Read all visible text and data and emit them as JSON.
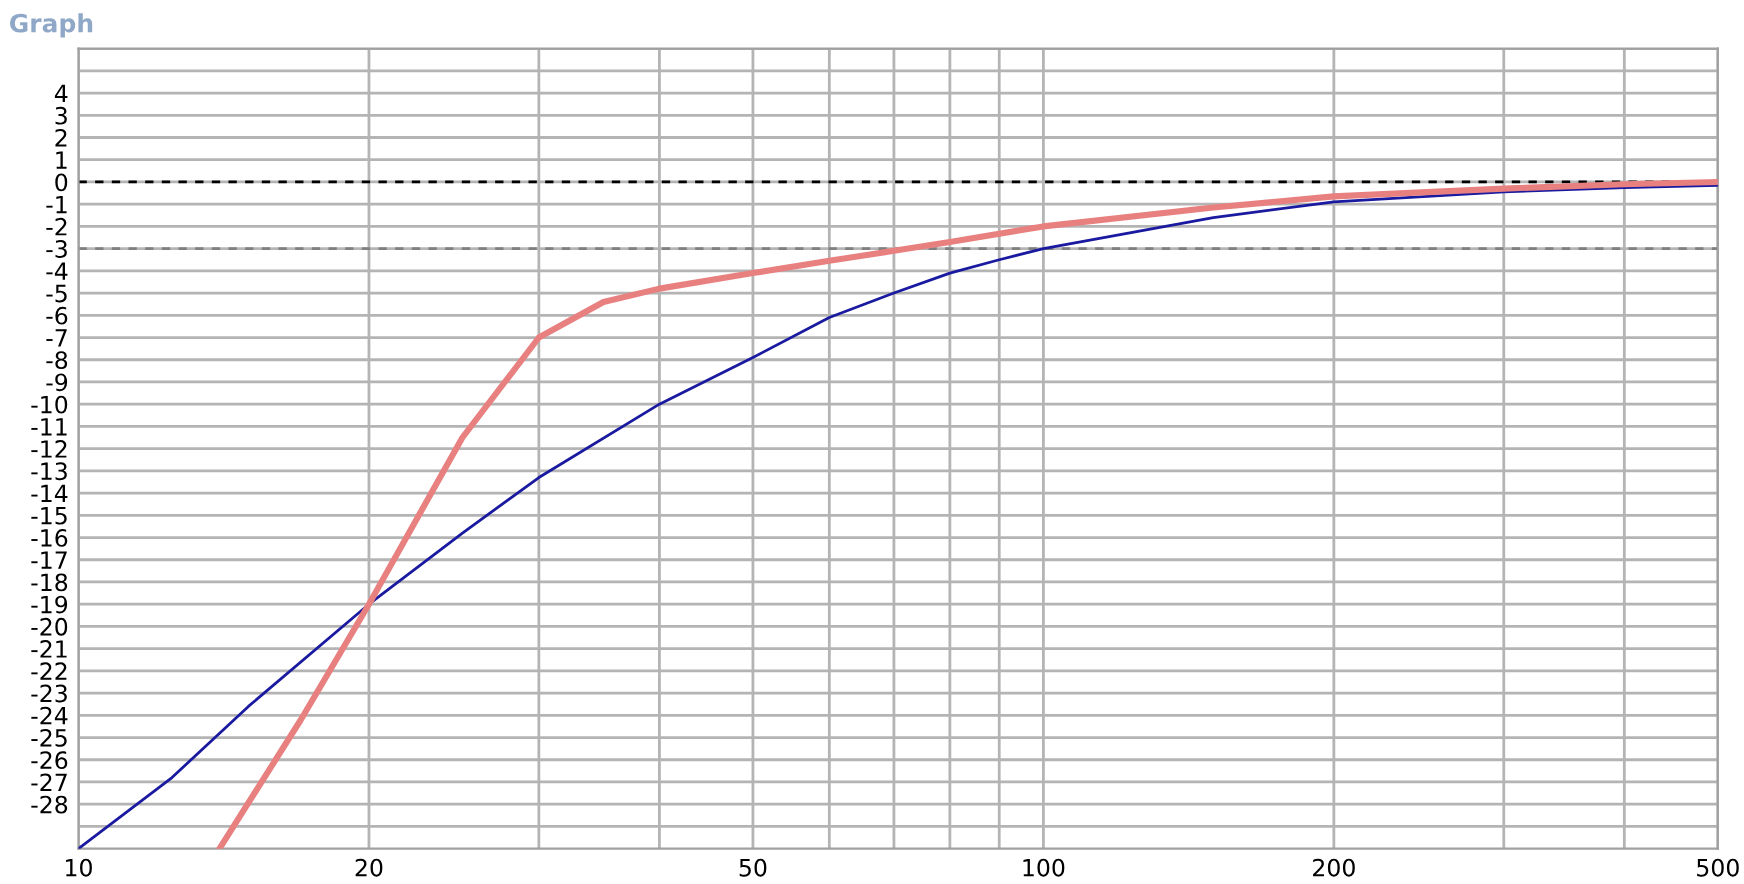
{
  "chart_data": {
    "type": "line",
    "title": "Graph",
    "log": "x",
    "xlim": [
      10,
      500
    ],
    "ylim": [
      -30,
      6
    ],
    "xticks": [
      10,
      20,
      {
        "value": 30,
        "label": null
      },
      {
        "value": 40,
        "label": null
      },
      50,
      {
        "value": 60,
        "label": null
      },
      {
        "value": 70,
        "label": null
      },
      {
        "value": 80,
        "label": null
      },
      {
        "value": 90,
        "label": null
      },
      100,
      200,
      {
        "value": 300,
        "label": null
      },
      {
        "value": 400,
        "label": null
      },
      500
    ],
    "yticks": [
      {
        "value": 6,
        "label": null
      },
      {
        "value": 5,
        "label": null
      },
      4,
      3,
      2,
      1,
      0,
      -1,
      -2,
      -3,
      -4,
      -5,
      -6,
      -7,
      -8,
      -9,
      -10,
      -11,
      -12,
      -13,
      -14,
      -15,
      -16,
      -17,
      -18,
      -19,
      -20,
      -21,
      -22,
      -23,
      -24,
      -25,
      -26,
      -27,
      -28,
      {
        "value": -29,
        "label": null
      }
    ],
    "grid": true,
    "ref_lines": [
      {
        "axis": "y",
        "value": 0,
        "color": "#000000",
        "line_style": "dashed"
      },
      {
        "axis": "y",
        "value": -3,
        "color": "#808080",
        "line_style": "dashed"
      }
    ],
    "series": [
      {
        "color": "#1a1aa0",
        "x": [
          10,
          12.5,
          15,
          20,
          25,
          30,
          40,
          50,
          60,
          70,
          80,
          90,
          100,
          150,
          200,
          300,
          400,
          500
        ],
        "values": [
          -30,
          -26.8,
          -23.6,
          -19,
          -15.8,
          -13.3,
          -10,
          -7.9,
          -6.1,
          -5.0,
          -4.1,
          -3.5,
          -3.0,
          -1.6,
          -0.9,
          -0.45,
          -0.25,
          -0.15
        ]
      },
      {
        "color": "#e88080",
        "x": [
          14,
          17,
          20,
          25,
          30,
          35,
          40,
          50,
          60,
          70,
          80,
          100,
          150,
          200,
          300,
          400,
          500
        ],
        "values": [
          -30,
          -24.2,
          -19,
          -11.5,
          -7.0,
          -5.4,
          -4.8,
          -4.1,
          -3.55,
          -3.1,
          -2.7,
          -2.0,
          -1.15,
          -0.65,
          -0.3,
          -0.1,
          0
        ]
      }
    ]
  }
}
